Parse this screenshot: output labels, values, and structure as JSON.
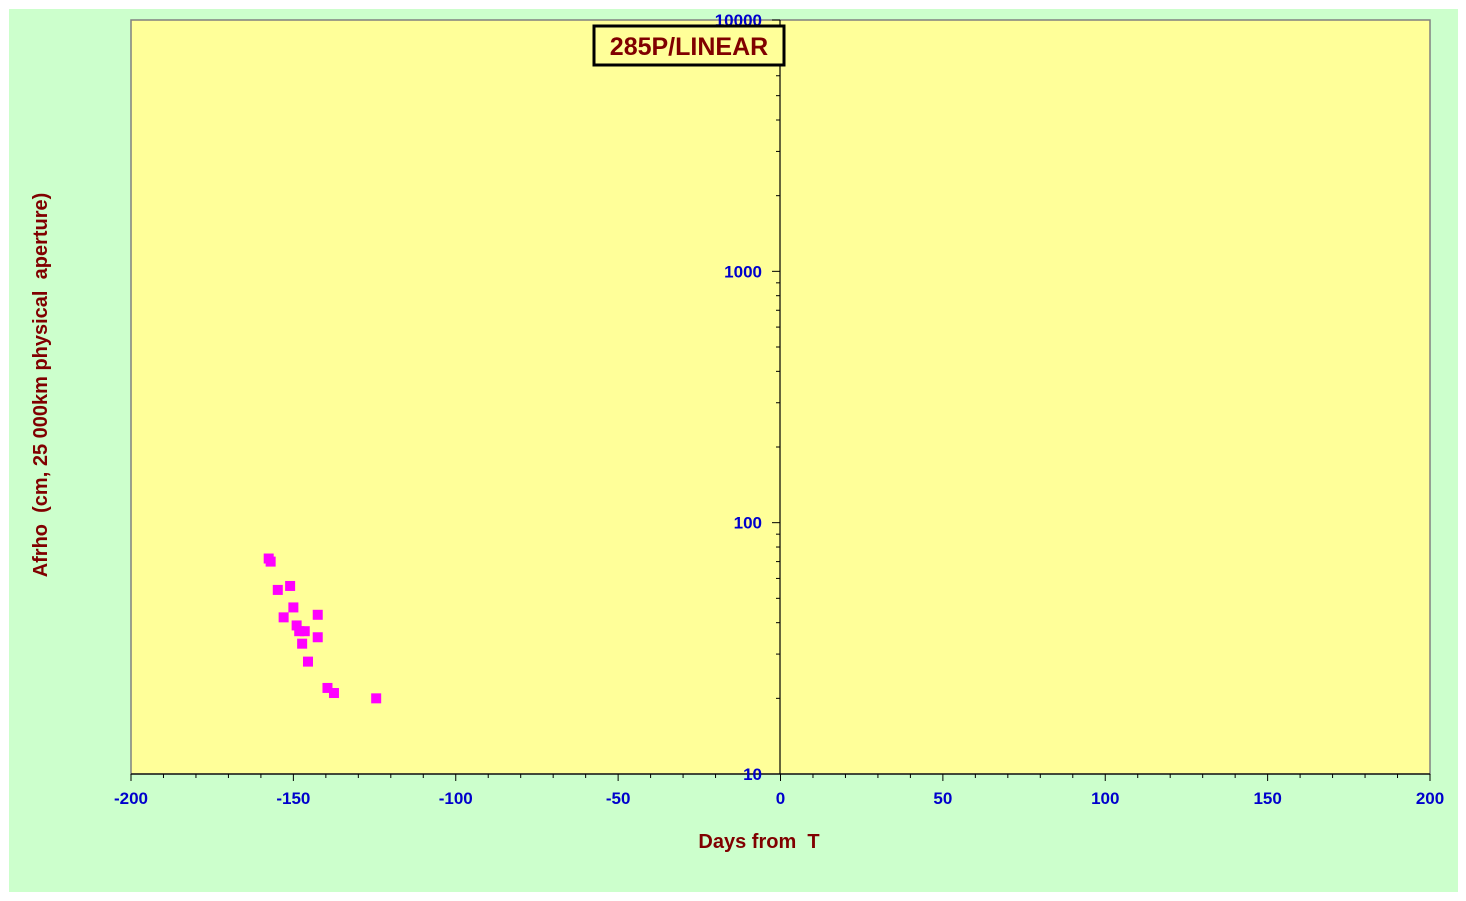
{
  "chart_data": {
    "type": "scatter",
    "title": "285P/LINEAR",
    "xlabel": "Days from  T",
    "ylabel": "Afrho  (cm, 25 000km physical  aperture)",
    "xlim": [
      -200,
      200
    ],
    "ylim": [
      10,
      10000
    ],
    "yscale": "log",
    "x_ticks": [
      -200,
      -150,
      -100,
      -50,
      0,
      50,
      100,
      150,
      200
    ],
    "x_tick_labels": [
      "-200",
      "-150",
      "-100",
      "-50",
      "0",
      "50",
      "100",
      "150",
      "200"
    ],
    "y_ticks": [
      10,
      100,
      1000,
      10000
    ],
    "y_tick_labels": [
      "10",
      "100",
      "1000",
      "10000"
    ],
    "grid": false,
    "series": [
      {
        "marker": "square",
        "color": "#ff00ff",
        "points": [
          {
            "x": -157.6,
            "y": 72
          },
          {
            "x": -157.0,
            "y": 70
          },
          {
            "x": -154.8,
            "y": 54
          },
          {
            "x": -153.0,
            "y": 42
          },
          {
            "x": -151.0,
            "y": 56
          },
          {
            "x": -150.0,
            "y": 46
          },
          {
            "x": -149.0,
            "y": 39
          },
          {
            "x": -148.2,
            "y": 37
          },
          {
            "x": -147.3,
            "y": 33
          },
          {
            "x": -146.5,
            "y": 37
          },
          {
            "x": -145.5,
            "y": 28
          },
          {
            "x": -142.5,
            "y": 43
          },
          {
            "x": -142.5,
            "y": 35
          },
          {
            "x": -139.5,
            "y": 22
          },
          {
            "x": -137.5,
            "y": 21
          },
          {
            "x": -124.5,
            "y": 20
          }
        ]
      }
    ]
  },
  "colors": {
    "background": "#ccffcc",
    "plot_area": "#ffff99",
    "tick_labels": "#0000cc",
    "axis_titles": "#800000",
    "title_text": "#800000",
    "marker": "#ff00ff"
  }
}
